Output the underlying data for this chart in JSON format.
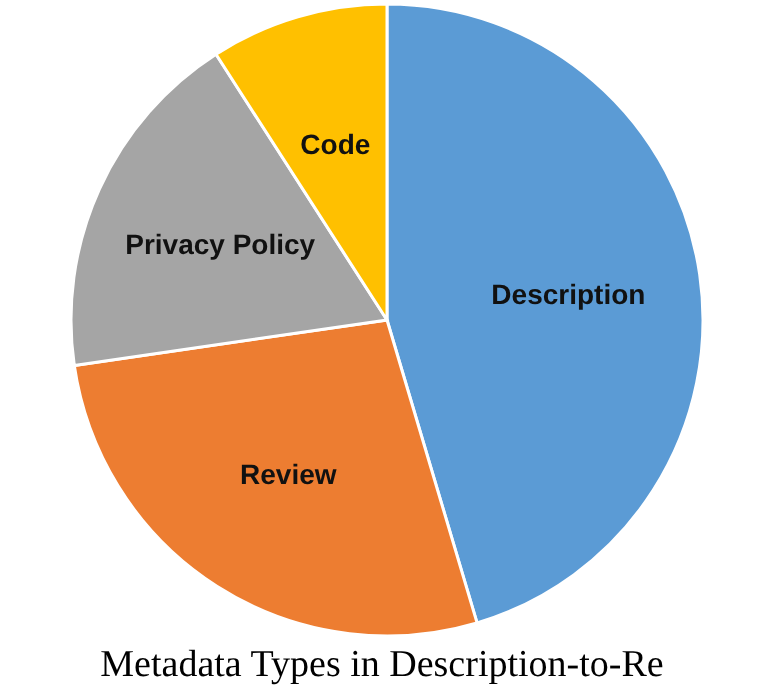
{
  "chart_data": {
    "type": "pie",
    "title": "Metadata Types in Description-to-Re",
    "categories": [
      "Description",
      "Review",
      "Privacy Policy",
      "Code"
    ],
    "values": [
      45.4,
      27.3,
      18.2,
      9.1
    ],
    "colors": [
      "#5b9bd5",
      "#ed7d31",
      "#a5a5a5",
      "#ffc000"
    ]
  }
}
